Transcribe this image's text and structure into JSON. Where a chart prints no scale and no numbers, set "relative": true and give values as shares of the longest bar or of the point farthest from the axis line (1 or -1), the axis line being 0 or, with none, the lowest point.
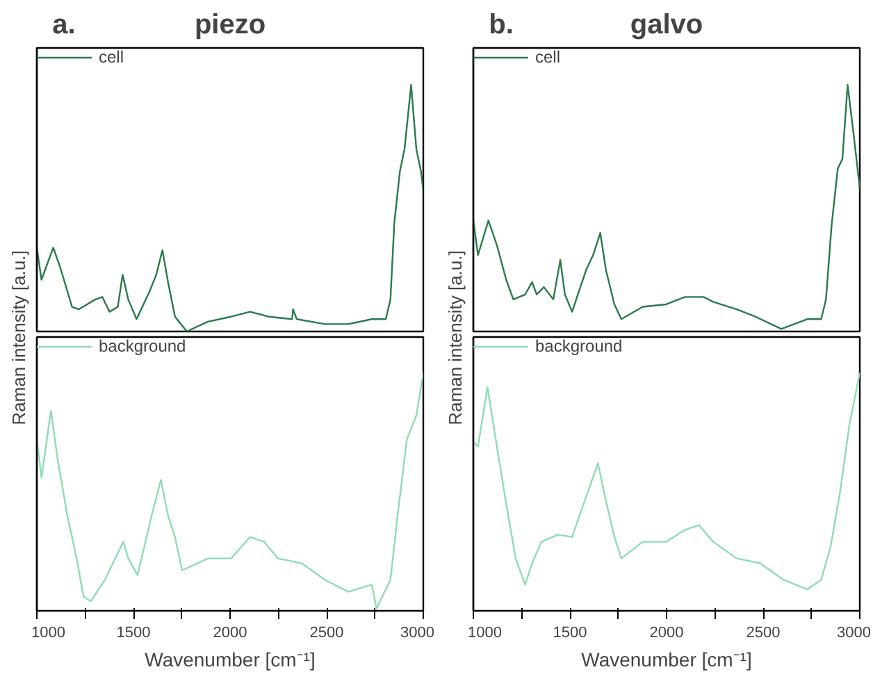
{
  "chart_data": [
    {
      "type": "line",
      "title": "piezo",
      "annotations": [
        "a."
      ],
      "ylabel": "Raman intensity [a.u.]",
      "relative": true,
      "xlim": [
        1000,
        3000
      ],
      "tick_labels": false,
      "legend": "top left",
      "grid": false,
      "series": [
        {
          "name": "cell",
          "color": "#2a7a4b",
          "x": [
            1000,
            1024,
            1085,
            1121,
            1182,
            1218,
            1303,
            1339,
            1376,
            1419,
            1444,
            1473,
            1516,
            1582,
            1618,
            1650,
            1679,
            1715,
            1776,
            1885,
            2006,
            2103,
            2200,
            2321,
            2326,
            2345,
            2491,
            2612,
            2733,
            2806,
            2830,
            2850,
            2879,
            2903,
            2937,
            2964,
            2988,
            3000
          ],
          "values": [
            0.34,
            0.21,
            0.34,
            0.26,
            0.1,
            0.09,
            0.13,
            0.14,
            0.08,
            0.1,
            0.23,
            0.13,
            0.05,
            0.16,
            0.23,
            0.33,
            0.2,
            0.06,
            0.0,
            0.04,
            0.06,
            0.08,
            0.06,
            0.05,
            0.09,
            0.05,
            0.03,
            0.03,
            0.05,
            0.05,
            0.13,
            0.44,
            0.65,
            0.74,
            1.0,
            0.74,
            0.65,
            0.57
          ]
        }
      ]
    },
    {
      "type": "line",
      "xlabel": "Wavenumber [cm⁻¹]",
      "relative": true,
      "xlim": [
        1000,
        3000
      ],
      "xticks": [
        1000,
        {
          "value": 1250,
          "label": null
        },
        1500,
        {
          "value": 1750,
          "label": null
        },
        2000,
        {
          "value": 2250,
          "label": null
        },
        2500,
        {
          "value": 2750,
          "label": null
        },
        3000
      ],
      "tick_labels": "x",
      "legend": "top left",
      "grid": false,
      "series": [
        {
          "name": "background",
          "color": "#8fdcb4",
          "x": [
            1000,
            1024,
            1073,
            1109,
            1158,
            1206,
            1242,
            1279,
            1352,
            1448,
            1473,
            1521,
            1594,
            1642,
            1679,
            1715,
            1752,
            1885,
            2006,
            2103,
            2176,
            2248,
            2370,
            2491,
            2612,
            2733,
            2758,
            2830,
            2867,
            2915,
            2964,
            3000
          ],
          "values": [
            0.72,
            0.56,
            0.84,
            0.63,
            0.4,
            0.22,
            0.06,
            0.04,
            0.13,
            0.29,
            0.22,
            0.15,
            0.4,
            0.55,
            0.4,
            0.31,
            0.17,
            0.22,
            0.22,
            0.31,
            0.29,
            0.22,
            0.2,
            0.13,
            0.08,
            0.11,
            0.01,
            0.13,
            0.4,
            0.72,
            0.82,
            1.0
          ]
        }
      ]
    },
    {
      "type": "line",
      "title": "galvo",
      "annotations": [
        "b."
      ],
      "ylabel": "Raman intensity [a.u.]",
      "relative": true,
      "xlim": [
        1000,
        3000
      ],
      "tick_labels": false,
      "legend": "top left",
      "grid": false,
      "series": [
        {
          "name": "cell",
          "color": "#2a7a4b",
          "x": [
            1000,
            1024,
            1078,
            1122,
            1170,
            1207,
            1268,
            1304,
            1328,
            1365,
            1414,
            1450,
            1474,
            1511,
            1584,
            1620,
            1657,
            1686,
            1730,
            1766,
            1876,
            1998,
            2095,
            2192,
            2241,
            2363,
            2460,
            2594,
            2727,
            2800,
            2825,
            2854,
            2886,
            2910,
            2937,
            2971,
            3000
          ],
          "values": [
            0.45,
            0.31,
            0.45,
            0.35,
            0.21,
            0.13,
            0.15,
            0.2,
            0.15,
            0.18,
            0.13,
            0.29,
            0.15,
            0.08,
            0.25,
            0.31,
            0.4,
            0.25,
            0.11,
            0.05,
            0.1,
            0.11,
            0.14,
            0.14,
            0.12,
            0.09,
            0.06,
            0.01,
            0.05,
            0.05,
            0.13,
            0.43,
            0.66,
            0.7,
            1.0,
            0.78,
            0.58
          ]
        }
      ]
    },
    {
      "type": "line",
      "xlabel": "Wavenumber [cm⁻¹]",
      "relative": true,
      "xlim": [
        1000,
        3000
      ],
      "xticks": [
        1000,
        {
          "value": 1250,
          "label": null
        },
        1500,
        {
          "value": 1750,
          "label": null
        },
        2000,
        {
          "value": 2250,
          "label": null
        },
        2500,
        {
          "value": 2750,
          "label": null
        },
        3000
      ],
      "tick_labels": "x",
      "legend": "top left",
      "grid": false,
      "series": [
        {
          "name": "background",
          "color": "#8fdcb4",
          "x": [
            1000,
            1024,
            1073,
            1122,
            1170,
            1219,
            1268,
            1304,
            1353,
            1438,
            1511,
            1584,
            1645,
            1681,
            1730,
            1766,
            1876,
            1998,
            2095,
            2168,
            2241,
            2363,
            2484,
            2606,
            2727,
            2800,
            2849,
            2898,
            2946,
            3000
          ],
          "values": [
            0.71,
            0.69,
            0.94,
            0.69,
            0.45,
            0.22,
            0.11,
            0.2,
            0.29,
            0.32,
            0.31,
            0.48,
            0.62,
            0.48,
            0.31,
            0.22,
            0.29,
            0.29,
            0.34,
            0.36,
            0.29,
            0.22,
            0.2,
            0.13,
            0.09,
            0.13,
            0.27,
            0.5,
            0.78,
            1.0
          ]
        }
      ]
    }
  ]
}
